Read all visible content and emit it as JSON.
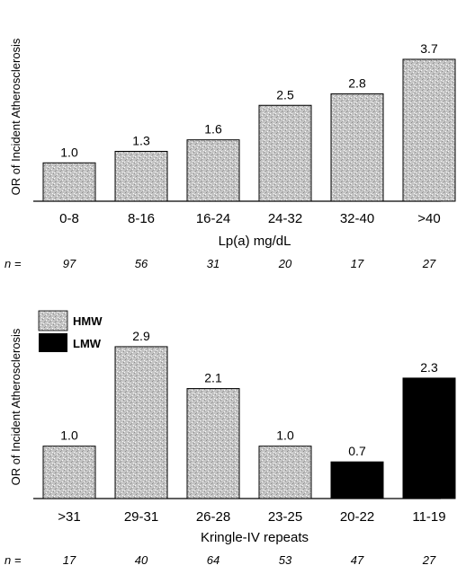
{
  "chart_data": [
    {
      "type": "bar",
      "ylabel": "OR of Incident Atherosclerosis",
      "xlabel": "Lp(a)  mg/dL",
      "categories": [
        "0-8",
        "8-16",
        "16-24",
        "24-32",
        "32-40",
        ">40"
      ],
      "values": [
        1.0,
        1.3,
        1.6,
        2.5,
        2.8,
        3.7
      ],
      "value_labels": [
        "1.0",
        "1.3",
        "1.6",
        "2.5",
        "2.8",
        "3.7"
      ],
      "n_prefix": "n = ",
      "n": [
        "97",
        "56",
        "31",
        "20",
        "17",
        "27"
      ],
      "bar_fill": "#b4b4b4",
      "ylim": [
        0,
        4.2
      ]
    },
    {
      "type": "bar",
      "ylabel": "OR of Incident Atherosclerosis",
      "xlabel": "Kringle-IV repeats",
      "categories": [
        ">31",
        "29-31",
        "26-28",
        "23-25",
        "20-22",
        "11-19"
      ],
      "values": [
        1.0,
        2.9,
        2.1,
        1.0,
        0.7,
        2.3
      ],
      "value_labels": [
        "1.0",
        "2.9",
        "2.1",
        "1.0",
        "0.7",
        "2.3"
      ],
      "groups": [
        "HMW",
        "HMW",
        "HMW",
        "HMW",
        "LMW",
        "LMW"
      ],
      "legend": [
        {
          "name": "HMW",
          "color": "#b4b4b4"
        },
        {
          "name": "LMW",
          "color": "#000000"
        }
      ],
      "legend_position": "top-left",
      "n_prefix": "n = ",
      "n": [
        "17",
        "40",
        "64",
        "53",
        "47",
        "27"
      ],
      "ylim": [
        0,
        3.3
      ]
    }
  ]
}
